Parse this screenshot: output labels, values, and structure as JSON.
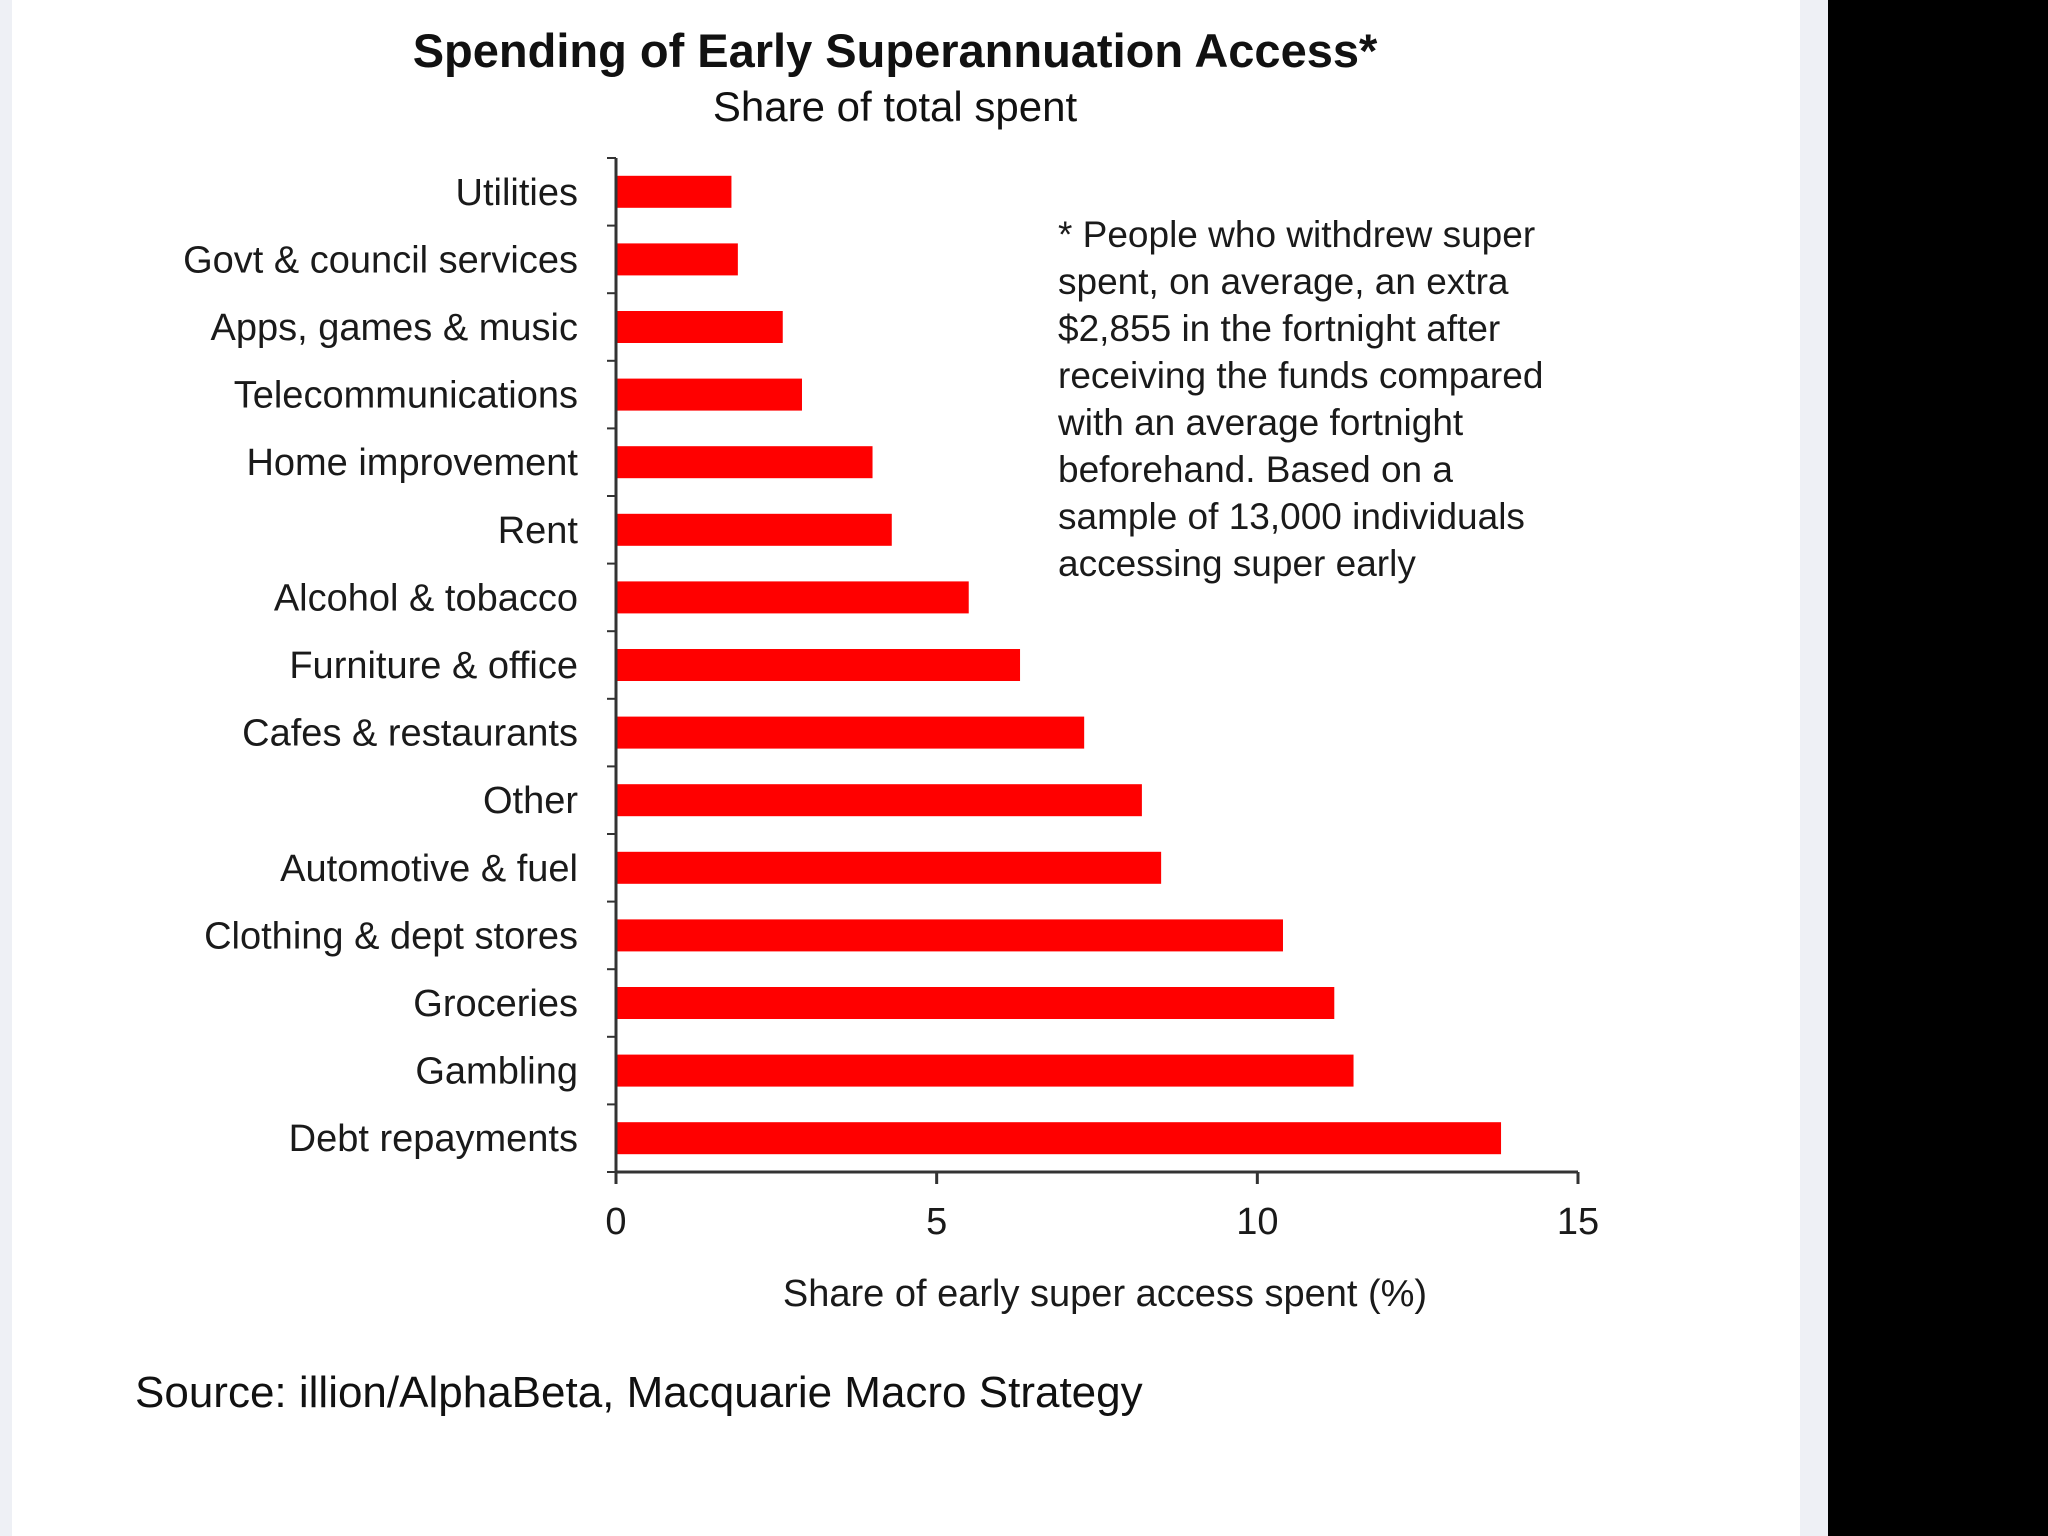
{
  "colors": {
    "bar": "#ff0000",
    "axis": "#333333"
  },
  "chart_data": {
    "type": "bar",
    "orientation": "horizontal",
    "title": "Spending of Early Superannuation Access*",
    "subtitle": "Share of total spent",
    "xlabel": "Share of early super access spent (%)",
    "ylabel": "",
    "xlim": [
      0,
      15
    ],
    "xticks": [
      0,
      5,
      10,
      15
    ],
    "grid": false,
    "legend": "none",
    "categories": [
      "Utilities",
      "Govt & council services",
      "Apps, games & music",
      "Telecommunications",
      "Home improvement",
      "Rent",
      "Alcohol & tobacco",
      "Furniture & office",
      "Cafes & restaurants",
      "Other",
      "Automotive & fuel",
      "Clothing & dept stores",
      "Groceries",
      "Gambling",
      "Debt repayments"
    ],
    "values": [
      1.8,
      1.9,
      2.6,
      2.9,
      4.0,
      4.3,
      5.5,
      6.3,
      7.3,
      8.2,
      8.5,
      10.4,
      11.2,
      11.5,
      13.8
    ],
    "annotation": [
      "* People who withdrew super",
      "spent, on average, an extra",
      "$2,855 in the fortnight after",
      "receiving the funds compared",
      "with an average fortnight",
      "beforehand. Based on a",
      "sample of 13,000 individuals",
      "accessing super early"
    ]
  },
  "source": "Source: illion/AlphaBeta, Macquarie Macro Strategy"
}
